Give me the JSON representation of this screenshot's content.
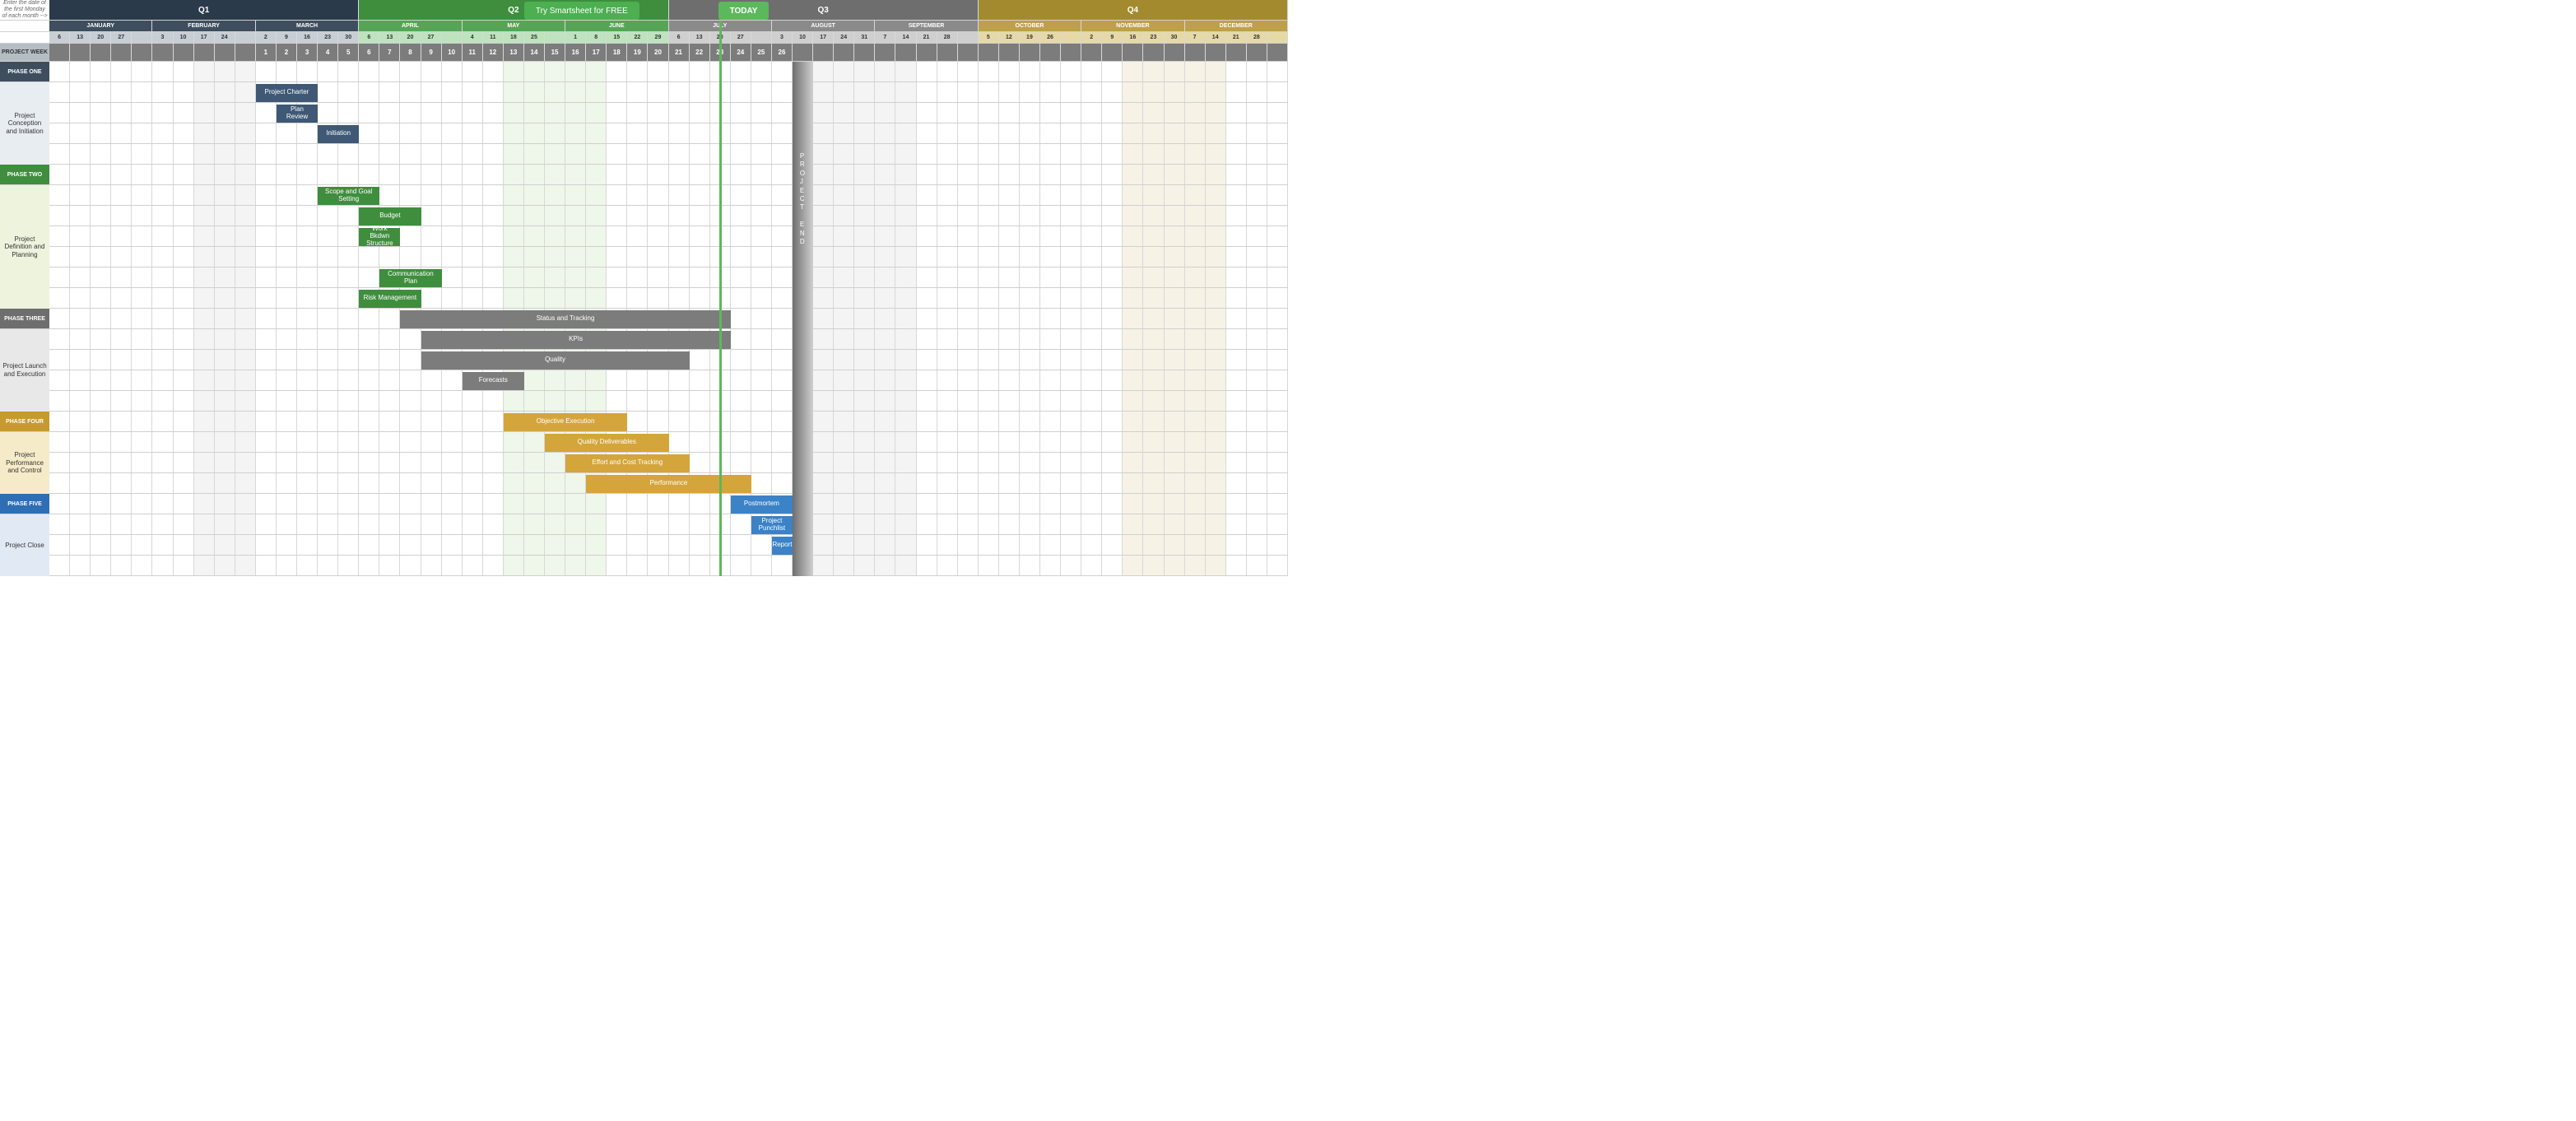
{
  "buttons": {
    "try_label": "Try Smartsheet for FREE",
    "today_label": "TODAY",
    "try_color": "#4CAF50",
    "today_color": "#5CB85C"
  },
  "instruction": "Enter the date of the first Monday of each month -->",
  "quarters": [
    {
      "label": "Q1",
      "span": 15,
      "color": "#2B3A4A"
    },
    {
      "label": "Q2",
      "span": 15,
      "color": "#3E8E3E"
    },
    {
      "label": "Q3",
      "span": 15,
      "color": "#6E6E6E"
    },
    {
      "label": "Q4",
      "span": 15,
      "color": "#A38A2E"
    }
  ],
  "months": [
    {
      "label": "JANUARY",
      "span": 5,
      "color": "#3E4E5E"
    },
    {
      "label": "FEBRUARY",
      "span": 5,
      "color": "#3E4E5E"
    },
    {
      "label": "MARCH",
      "span": 5,
      "color": "#3E4E5E"
    },
    {
      "label": "APRIL",
      "span": 5,
      "color": "#56A556"
    },
    {
      "label": "MAY",
      "span": 5,
      "color": "#56A556"
    },
    {
      "label": "JUNE",
      "span": 5,
      "color": "#56A556"
    },
    {
      "label": "JULY",
      "span": 5,
      "color": "#8A8A8A"
    },
    {
      "label": "AUGUST",
      "span": 5,
      "color": "#8A8A8A"
    },
    {
      "label": "SEPTEMBER",
      "span": 5,
      "color": "#8A8A8A"
    },
    {
      "label": "OCTOBER",
      "span": 5,
      "color": "#BFA04A"
    },
    {
      "label": "NOVEMBER",
      "span": 5,
      "color": "#BFA04A"
    },
    {
      "label": "DECEMBER",
      "span": 5,
      "color": "#BFA04A"
    }
  ],
  "days": [
    "6",
    "13",
    "20",
    "27",
    "",
    "3",
    "10",
    "17",
    "24",
    "",
    "2",
    "9",
    "16",
    "23",
    "30",
    "6",
    "13",
    "20",
    "27",
    "",
    "4",
    "11",
    "18",
    "25",
    "",
    "1",
    "8",
    "15",
    "22",
    "29",
    "6",
    "13",
    "20",
    "27",
    "",
    "3",
    "10",
    "17",
    "24",
    "31",
    "7",
    "14",
    "21",
    "28",
    "",
    "5",
    "12",
    "19",
    "26",
    "",
    "2",
    "9",
    "16",
    "23",
    "30",
    "7",
    "14",
    "21",
    "28",
    ""
  ],
  "day_colors": {
    "q1": "#C8CED4",
    "q2": "#BEE3BE",
    "q3": "#CFCFCF",
    "q4": "#E6D9A8"
  },
  "project_week": {
    "label": "PROJECT WEEK",
    "side_bg": "#B5BDC4",
    "values": [
      "",
      "",
      "",
      "",
      "",
      "",
      "",
      "",
      "",
      "",
      "1",
      "2",
      "3",
      "4",
      "5",
      "6",
      "7",
      "8",
      "9",
      "10",
      "11",
      "12",
      "13",
      "14",
      "15",
      "16",
      "17",
      "18",
      "19",
      "20",
      "21",
      "22",
      "23",
      "24",
      "25",
      "26",
      "",
      "",
      "",
      "",
      "",
      "",
      "",
      "",
      "",
      "",
      "",
      "",
      "",
      "",
      "",
      "",
      "",
      "",
      "",
      "",
      "",
      "",
      "",
      ""
    ],
    "cell_bg": "#7C7C7C"
  },
  "sections": [
    {
      "header": {
        "label": "PHASE ONE",
        "bg": "#3E4E5E",
        "text": "#fff"
      },
      "desc": "Project Conception and Initiation",
      "desc_bg": "#E8EDF2",
      "rows": [
        {
          "task": {
            "label": "Project Charter",
            "start": 10,
            "end": 13,
            "color": "#3E5875"
          }
        },
        {
          "task": {
            "label": "Plan Review",
            "start": 11,
            "end": 13,
            "color": "#3E5875"
          }
        },
        {
          "task": {
            "label": "Initiation",
            "start": 13,
            "end": 15,
            "color": "#3E5875"
          }
        },
        {}
      ]
    },
    {
      "header": {
        "label": "PHASE TWO",
        "bg": "#3E8E3E",
        "text": "#fff"
      },
      "desc": "Project Definition and Planning",
      "desc_bg": "#EEF3DE",
      "rows": [
        {
          "task": {
            "label": "Scope and Goal Setting",
            "start": 13,
            "end": 16,
            "color": "#3E8E3E",
            "two_line": true
          }
        },
        {
          "task": {
            "label": "Budget",
            "start": 15,
            "end": 18,
            "color": "#3E8E3E"
          }
        },
        {
          "task": {
            "label": "Work Bkdwn Structure",
            "start": 15,
            "end": 17,
            "color": "#3E8E3E",
            "two_line": true
          }
        },
        {},
        {
          "task": {
            "label": "Communication Plan",
            "start": 16,
            "end": 19,
            "color": "#3E8E3E",
            "two_line": true
          }
        },
        {
          "task": {
            "label": "Risk Management",
            "start": 15,
            "end": 18,
            "color": "#3E8E3E"
          }
        }
      ]
    },
    {
      "header": {
        "label": "PHASE THREE",
        "bg": "#6E6E6E",
        "text": "#fff"
      },
      "desc": "Project Launch and Execution",
      "desc_bg": "#E8E8E8",
      "header_task": {
        "label": "Status  and Tracking",
        "start": 17,
        "end": 33,
        "color": "#7C7C7C"
      },
      "rows": [
        {
          "task": {
            "label": "KPIs",
            "start": 18,
            "end": 33,
            "color": "#7C7C7C"
          }
        },
        {
          "task": {
            "label": "Quality",
            "start": 18,
            "end": 31,
            "color": "#7C7C7C"
          }
        },
        {
          "task": {
            "label": "Forecasts",
            "start": 20,
            "end": 23,
            "color": "#7C7C7C"
          }
        },
        {}
      ]
    },
    {
      "header": {
        "label": "PHASE FOUR",
        "bg": "#C79A2E",
        "text": "#fff"
      },
      "desc": "Project Performance and Control",
      "desc_bg": "#F5EBC8",
      "header_task": {
        "label": "Objective Execution",
        "start": 22,
        "end": 28,
        "color": "#D4A53B"
      },
      "rows": [
        {
          "task": {
            "label": "Quality Deliverables",
            "start": 24,
            "end": 30,
            "color": "#D4A53B"
          }
        },
        {
          "task": {
            "label": "Effort and Cost Tracking",
            "start": 25,
            "end": 31,
            "color": "#D4A53B"
          }
        },
        {
          "task": {
            "label": "Performance",
            "start": 26,
            "end": 34,
            "color": "#D4A53B"
          }
        }
      ]
    },
    {
      "header": {
        "label": "PHASE FIVE",
        "bg": "#2E6EB5",
        "text": "#fff"
      },
      "desc": "Project Close",
      "desc_bg": "#E1EAF4",
      "header_task": {
        "label": "Postmortem",
        "start": 33,
        "end": 36,
        "color": "#3B82C7"
      },
      "rows": [
        {
          "task": {
            "label": "Project Punchlist",
            "start": 34,
            "end": 36,
            "color": "#3B82C7",
            "two_line": true
          }
        },
        {
          "task": {
            "label": "Report",
            "start": 35,
            "end": 36,
            "color": "#3B82C7"
          }
        },
        {}
      ]
    }
  ],
  "shaded_cols": {
    "light_green": [
      {
        "start": 22,
        "end": 27
      }
    ],
    "light_gray": [
      {
        "start": 7,
        "end": 10
      },
      {
        "start": 36,
        "end": 42
      }
    ],
    "light_tan": [
      {
        "start": 52,
        "end": 57
      }
    ]
  },
  "today_col": 32.5,
  "project_end": {
    "col": 36,
    "label": "PROJECT END",
    "gradient_start": "#6E6E6E",
    "gradient_end": "#D0D0D0"
  }
}
